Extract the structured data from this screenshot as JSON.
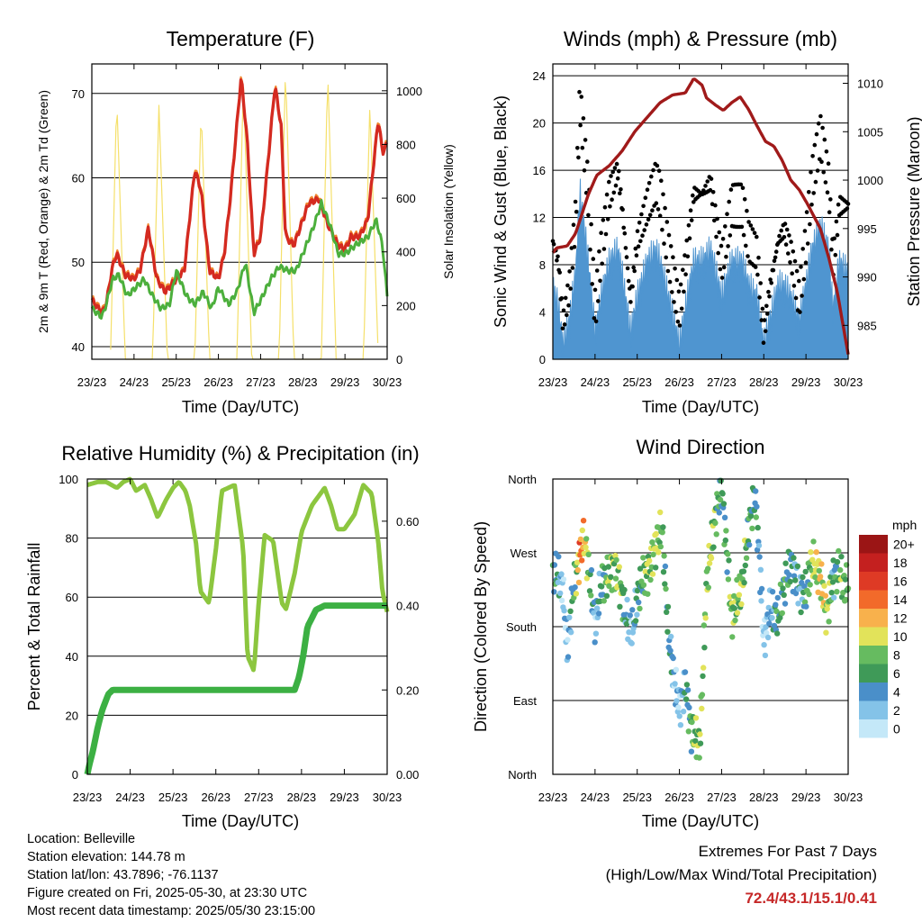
{
  "x_ticks": [
    "23/23",
    "24/23",
    "25/23",
    "26/23",
    "27/23",
    "28/23",
    "29/23",
    "30/23"
  ],
  "x_label": "Time (Day/UTC)",
  "colors": {
    "temp2m": "#d42a20",
    "temp9m": "#f07a18",
    "dew": "#4caf3c",
    "solar": "#f5e06a",
    "gust": "#000000",
    "wind": "#4f95d0",
    "pressure": "#a01a1a",
    "rh": "#8cc63f",
    "precip": "#3cb043",
    "grid": "#000000"
  },
  "panels": {
    "temperature": {
      "title": "Temperature (F)",
      "y_label_left": "2m & 9m T (Red, Orange) & 2m Td (Green)",
      "y_label_right": "Solar Insolation (Yellow)",
      "y_ticks": [
        "40",
        "50",
        "60",
        "70"
      ],
      "y2_ticks": [
        "0",
        "200",
        "400",
        "600",
        "800",
        "1000"
      ]
    },
    "winds": {
      "title": "Winds (mph) & Pressure (mb)",
      "y_label_left": "Sonic Wind & Gust (Blue, Black)",
      "y_label_right": "Station Pressure (Maroon)",
      "y_ticks": [
        "0",
        "4",
        "8",
        "12",
        "16",
        "20",
        "24"
      ],
      "y2_ticks": [
        "985",
        "990",
        "995",
        "1000",
        "1005",
        "1010"
      ]
    },
    "humidity": {
      "title": "Relative Humidity (%) & Precipitation (in)",
      "y_label_left": "Percent & Total Rainfall",
      "y_ticks": [
        "0",
        "20",
        "40",
        "60",
        "80",
        "100"
      ],
      "y2_ticks": [
        "0.00",
        "0.20",
        "0.40",
        "0.60"
      ]
    },
    "direction": {
      "title": "Wind Direction",
      "y_label_left": "Direction (Colored By Speed)",
      "y_ticks": [
        "North",
        "East",
        "South",
        "West",
        "North"
      ],
      "legend_title": "mph",
      "legend_labels": [
        "0",
        "2",
        "4",
        "6",
        "8",
        "10",
        "12",
        "14",
        "16",
        "18",
        "20+"
      ],
      "legend_colors": [
        "#c4e8f8",
        "#84c3e8",
        "#4a8fc9",
        "#3f9a58",
        "#66bb60",
        "#e2e35a",
        "#f8b14c",
        "#f26a2a",
        "#de3a25",
        "#c4201f",
        "#9b1515"
      ]
    }
  },
  "chart_data": [
    {
      "type": "line",
      "title": "Temperature (F)",
      "x_range_days": [
        23.96,
        30.96
      ],
      "ylim": [
        38.5,
        73.5
      ],
      "y2lim": [
        0,
        1100
      ],
      "series": [
        {
          "name": "2m T",
          "axis": "left",
          "x": [
            23.96,
            24.2,
            24.3,
            24.45,
            24.55,
            24.75,
            24.95,
            25.1,
            25.3,
            25.5,
            25.7,
            25.96,
            26.15,
            26.4,
            26.55,
            26.75,
            26.96,
            27.1,
            27.25,
            27.5,
            27.65,
            27.8,
            27.96,
            28.1,
            28.3,
            28.45,
            28.55,
            28.75,
            28.96,
            29.1,
            29.35,
            29.55,
            29.8,
            29.96,
            30.1,
            30.3,
            30.5,
            30.75,
            30.85,
            30.96
          ],
          "values": [
            45.5,
            44.0,
            45.0,
            49.5,
            51.0,
            48.5,
            48.0,
            49.0,
            54.0,
            48.0,
            46.5,
            48.0,
            49.0,
            61.0,
            58.5,
            49.0,
            48.0,
            51.0,
            58.0,
            72.0,
            64.0,
            51.0,
            53.0,
            60.0,
            71.0,
            66.0,
            53.0,
            52.0,
            55.0,
            57.0,
            57.5,
            54.5,
            52.0,
            51.5,
            53.0,
            53.0,
            55.0,
            67.0,
            63.0,
            64.0
          ]
        },
        {
          "name": "2m Td",
          "axis": "left",
          "x": [
            23.96,
            24.2,
            24.3,
            24.45,
            24.6,
            24.8,
            25.0,
            25.2,
            25.4,
            25.6,
            25.8,
            25.96,
            26.2,
            26.4,
            26.6,
            26.8,
            26.96,
            27.2,
            27.4,
            27.6,
            27.8,
            27.96,
            28.2,
            28.4,
            28.6,
            28.8,
            28.96,
            29.2,
            29.4,
            29.6,
            29.8,
            29.96,
            30.2,
            30.5,
            30.7,
            30.85,
            30.96
          ],
          "values": [
            44.5,
            43.5,
            45.0,
            48.0,
            48.5,
            46.0,
            47.0,
            48.0,
            46.0,
            44.5,
            45.0,
            49.0,
            46.0,
            45.0,
            46.5,
            44.5,
            47.0,
            45.0,
            46.5,
            50.0,
            44.0,
            45.5,
            48.0,
            49.5,
            49.0,
            49.0,
            51.0,
            54.0,
            57.0,
            54.5,
            51.0,
            51.0,
            52.0,
            53.0,
            55.0,
            52.0,
            46.0
          ]
        },
        {
          "name": "Solar",
          "axis": "right",
          "x": [
            24.4,
            24.55,
            24.75,
            25.4,
            25.55,
            25.75,
            26.4,
            26.55,
            26.75,
            27.4,
            27.55,
            27.75,
            28.4,
            28.55,
            28.75,
            29.4,
            29.55,
            29.75,
            30.4,
            30.55,
            30.75
          ],
          "values": [
            0,
            980,
            0,
            0,
            950,
            0,
            0,
            940,
            0,
            0,
            1040,
            0,
            0,
            1090,
            0,
            0,
            1075,
            0,
            0,
            950,
            0
          ]
        }
      ]
    },
    {
      "type": "scatter",
      "title": "Winds (mph) & Pressure (mb)",
      "x_range_days": [
        23.96,
        30.96
      ],
      "ylim": [
        0,
        25
      ],
      "y2lim": [
        981.5,
        1012
      ],
      "series": [
        {
          "name": "Gust",
          "axis": "left",
          "x": [
            23.96,
            24.1,
            24.2,
            24.35,
            24.5,
            24.6,
            24.8,
            24.96,
            25.1,
            25.3,
            25.5,
            25.6,
            25.8,
            25.96,
            26.2,
            26.4,
            26.5,
            26.7,
            26.96,
            27.1,
            27.3,
            27.5,
            27.7,
            27.96,
            28.2,
            28.45,
            28.6,
            28.8,
            28.96,
            29.1,
            29.3,
            29.45,
            29.6,
            29.8,
            29.96,
            30.1,
            30.3,
            30.5,
            30.6,
            30.75,
            30.96
          ],
          "values": [
            10,
            8,
            3,
            6,
            12,
            22,
            14,
            4,
            9,
            14,
            16,
            13,
            5,
            10,
            13,
            15,
            14,
            9,
            4,
            8,
            14,
            14,
            15,
            8,
            13,
            13,
            10,
            9,
            2,
            6,
            10,
            11,
            9,
            5,
            10,
            15,
            19,
            15,
            8,
            13,
            13
          ]
        },
        {
          "name": "Wind",
          "axis": "left",
          "x": [
            23.96,
            24.1,
            24.2,
            24.35,
            24.5,
            24.6,
            24.8,
            24.96,
            25.1,
            25.3,
            25.5,
            25.6,
            25.8,
            25.96,
            26.2,
            26.4,
            26.5,
            26.7,
            26.96,
            27.1,
            27.3,
            27.5,
            27.7,
            27.96,
            28.2,
            28.45,
            28.6,
            28.8,
            28.96,
            29.1,
            29.3,
            29.45,
            29.6,
            29.8,
            29.96,
            30.1,
            30.3,
            30.5,
            30.6,
            30.75,
            30.96
          ],
          "values": [
            6,
            4,
            1,
            3,
            7,
            14,
            8,
            2,
            5,
            8,
            9,
            7,
            2,
            5,
            8,
            9,
            8,
            5,
            1,
            4,
            8,
            8,
            9,
            5,
            8,
            8,
            6,
            5,
            1,
            3,
            6,
            6,
            5,
            3,
            6,
            9,
            11,
            9,
            4,
            8,
            7
          ]
        },
        {
          "name": "Pressure",
          "axis": "right",
          "x": [
            23.96,
            24.05,
            24.3,
            24.5,
            24.8,
            25.0,
            25.3,
            25.6,
            25.9,
            26.2,
            26.5,
            26.8,
            27.1,
            27.3,
            27.5,
            27.6,
            27.8,
            28.0,
            28.2,
            28.4,
            28.6,
            28.8,
            29.0,
            29.2,
            29.4,
            29.6,
            29.8,
            30.0,
            30.3,
            30.5,
            30.7,
            30.96
          ],
          "values": [
            992.5,
            993.0,
            993.2,
            994.5,
            998.5,
            1000.5,
            1001.5,
            1003.0,
            1005.0,
            1006.5,
            1008.0,
            1008.8,
            1009.0,
            1010.5,
            1009.8,
            1008.5,
            1007.8,
            1007.2,
            1008.0,
            1008.6,
            1007.3,
            1005.6,
            1004.0,
            1003.5,
            1002.0,
            1000.0,
            999.0,
            997.5,
            995.0,
            992.0,
            988.5,
            982.0
          ]
        }
      ]
    },
    {
      "type": "line",
      "title": "Relative Humidity (%) & Precipitation (in)",
      "x_range_days": [
        23.96,
        30.96
      ],
      "ylim": [
        0,
        100
      ],
      "y2lim": [
        0,
        0.7
      ],
      "series": [
        {
          "name": "RH",
          "axis": "left",
          "x": [
            23.96,
            24.2,
            24.4,
            24.65,
            24.8,
            24.96,
            25.1,
            25.3,
            25.45,
            25.6,
            25.8,
            25.96,
            26.1,
            26.25,
            26.35,
            26.5,
            26.6,
            26.8,
            26.96,
            27.1,
            27.4,
            27.6,
            27.7,
            27.85,
            27.96,
            28.1,
            28.3,
            28.5,
            28.6,
            28.8,
            28.96,
            29.2,
            29.5,
            29.65,
            29.8,
            29.96,
            30.2,
            30.4,
            30.6,
            30.75,
            30.85,
            30.96
          ],
          "values": [
            98,
            99,
            99,
            97,
            99,
            100,
            96,
            98,
            93,
            87,
            93,
            97,
            99,
            96,
            91,
            78,
            62,
            58,
            76,
            96,
            98,
            76,
            40,
            35,
            58,
            81,
            79,
            58,
            56,
            68,
            82,
            91,
            97,
            91,
            83,
            83,
            88,
            98,
            95,
            79,
            62,
            55
          ]
        },
        {
          "name": "Precipitation",
          "axis": "right",
          "x": [
            23.96,
            24.0,
            24.1,
            24.2,
            24.3,
            24.45,
            24.55,
            25.0,
            26.0,
            27.0,
            28.0,
            28.8,
            28.9,
            29.0,
            29.1,
            29.3,
            29.5,
            30.0,
            30.96
          ],
          "values": [
            0.0,
            0.02,
            0.06,
            0.11,
            0.15,
            0.19,
            0.2,
            0.2,
            0.2,
            0.2,
            0.2,
            0.2,
            0.23,
            0.28,
            0.35,
            0.39,
            0.4,
            0.4,
            0.4
          ]
        }
      ]
    },
    {
      "type": "scatter",
      "title": "Wind Direction",
      "x_range_days": [
        23.96,
        30.96
      ],
      "y_range_deg": [
        0,
        360
      ],
      "series": [
        {
          "name": "Direction",
          "x": [
            24.05,
            24.2,
            24.3,
            24.45,
            24.55,
            24.6,
            24.7,
            24.85,
            24.96,
            25.1,
            25.25,
            25.4,
            25.55,
            25.7,
            25.85,
            25.96,
            26.1,
            26.25,
            26.4,
            26.55,
            26.7,
            26.85,
            26.96,
            27.1,
            27.25,
            27.45,
            27.6,
            27.8,
            27.96,
            28.1,
            28.2,
            28.45,
            28.6,
            28.75,
            28.85,
            28.96,
            29.1,
            29.3,
            29.45,
            29.6,
            29.8,
            29.96,
            30.1,
            30.3,
            30.45,
            30.6,
            30.75,
            30.85
          ],
          "values": [
            245,
            225,
            150,
            230,
            250,
            270,
            290,
            235,
            180,
            230,
            240,
            255,
            230,
            190,
            175,
            215,
            240,
            250,
            280,
            300,
            170,
            110,
            80,
            110,
            50,
            40,
            230,
            310,
            350,
            260,
            190,
            230,
            300,
            340,
            270,
            160,
            200,
            190,
            230,
            260,
            225,
            220,
            260,
            240,
            195,
            240,
            250,
            230
          ]
        }
      ]
    }
  ],
  "footer": {
    "location": "Location: Belleville",
    "elevation": "Station elevation: 144.78 m",
    "latlon": "Station lat/lon: 43.7896; -76.1137",
    "created": "Figure created on Fri, 2025-05-30, at 23:30 UTC",
    "recent": "Most recent data timestamp: 2025/05/30 23:15:00"
  },
  "extremes": {
    "title": "Extremes For Past 7 Days",
    "subtitle": "(High/Low/Max Wind/Total Precipitation)",
    "values": "72.4/43.1/15.1/0.41"
  }
}
